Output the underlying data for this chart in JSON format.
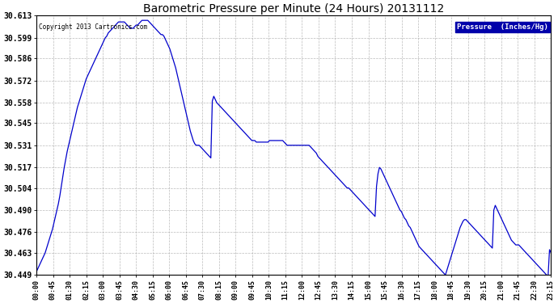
{
  "title": "Barometric Pressure per Minute (24 Hours) 20131112",
  "copyright": "Copyright 2013 Cartronics.com",
  "legend_label": "Pressure  (Inches/Hg)",
  "background_color": "#ffffff",
  "line_color": "#0000cc",
  "grid_color": "#aaaaaa",
  "yticks": [
    30.449,
    30.463,
    30.476,
    30.49,
    30.504,
    30.517,
    30.531,
    30.545,
    30.558,
    30.572,
    30.586,
    30.599,
    30.613
  ],
  "ylim": [
    30.449,
    30.613
  ],
  "xtick_labels": [
    "00:00",
    "00:45",
    "01:30",
    "02:15",
    "03:00",
    "03:45",
    "04:30",
    "05:15",
    "06:00",
    "06:45",
    "07:30",
    "08:15",
    "09:00",
    "09:45",
    "10:30",
    "11:15",
    "12:00",
    "12:45",
    "13:30",
    "14:15",
    "15:00",
    "15:45",
    "16:30",
    "17:15",
    "18:00",
    "18:45",
    "19:30",
    "20:15",
    "21:00",
    "21:45",
    "22:30",
    "23:15"
  ],
  "pressure_data": [
    30.451,
    30.453,
    30.455,
    30.457,
    30.459,
    30.461,
    30.463,
    30.466,
    30.469,
    30.472,
    30.475,
    30.478,
    30.482,
    30.486,
    30.49,
    30.494,
    30.499,
    30.505,
    30.511,
    30.517,
    30.522,
    30.527,
    30.531,
    30.535,
    30.539,
    30.543,
    30.547,
    30.551,
    30.555,
    30.558,
    30.561,
    30.564,
    30.567,
    30.57,
    30.573,
    30.575,
    30.577,
    30.579,
    30.581,
    30.583,
    30.585,
    30.587,
    30.589,
    30.591,
    30.593,
    30.595,
    30.597,
    30.599,
    30.6,
    30.602,
    30.603,
    30.604,
    30.605,
    30.606,
    30.607,
    30.608,
    30.609,
    30.609,
    30.609,
    30.609,
    30.609,
    30.608,
    30.607,
    30.606,
    30.605,
    30.605,
    30.605,
    30.606,
    30.607,
    30.607,
    30.608,
    30.609,
    30.61,
    30.61,
    30.61,
    30.61,
    30.61,
    30.609,
    30.608,
    30.607,
    30.606,
    30.605,
    30.604,
    30.603,
    30.602,
    30.601,
    30.601,
    30.6,
    30.598,
    30.596,
    30.594,
    30.592,
    30.589,
    30.586,
    30.583,
    30.58,
    30.576,
    30.572,
    30.568,
    30.564,
    30.56,
    30.556,
    30.552,
    30.548,
    30.544,
    30.54,
    30.537,
    30.534,
    30.532,
    30.531,
    30.531,
    30.531,
    30.53,
    30.529,
    30.528,
    30.527,
    30.526,
    30.525,
    30.524,
    30.523,
    30.559,
    30.562,
    30.56,
    30.558,
    30.557,
    30.556,
    30.555,
    30.554,
    30.553,
    30.552,
    30.551,
    30.55,
    30.549,
    30.548,
    30.547,
    30.546,
    30.545,
    30.544,
    30.543,
    30.542,
    30.541,
    30.54,
    30.539,
    30.538,
    30.537,
    30.536,
    30.535,
    30.534,
    30.534,
    30.534,
    30.533,
    30.533,
    30.533,
    30.533,
    30.533,
    30.533,
    30.533,
    30.533,
    30.533,
    30.534,
    30.534,
    30.534,
    30.534,
    30.534,
    30.534,
    30.534,
    30.534,
    30.534,
    30.534,
    30.533,
    30.532,
    30.531,
    30.531,
    30.531,
    30.531,
    30.531,
    30.531,
    30.531,
    30.531,
    30.531,
    30.531,
    30.531,
    30.531,
    30.531,
    30.531,
    30.531,
    30.531,
    30.53,
    30.529,
    30.528,
    30.527,
    30.526,
    30.524,
    30.523,
    30.522,
    30.521,
    30.52,
    30.519,
    30.518,
    30.517,
    30.516,
    30.515,
    30.514,
    30.513,
    30.512,
    30.511,
    30.51,
    30.509,
    30.508,
    30.507,
    30.506,
    30.505,
    30.504,
    30.504,
    30.503,
    30.502,
    30.501,
    30.5,
    30.499,
    30.498,
    30.497,
    30.496,
    30.495,
    30.494,
    30.493,
    30.492,
    30.491,
    30.49,
    30.489,
    30.488,
    30.487,
    30.486,
    30.505,
    30.513,
    30.517,
    30.516,
    30.514,
    30.512,
    30.51,
    30.508,
    30.506,
    30.504,
    30.502,
    30.5,
    30.498,
    30.496,
    30.494,
    30.492,
    30.49,
    30.489,
    30.487,
    30.485,
    30.484,
    30.482,
    30.48,
    30.479,
    30.477,
    30.475,
    30.473,
    30.471,
    30.469,
    30.467,
    30.466,
    30.465,
    30.464,
    30.463,
    30.462,
    30.461,
    30.46,
    30.459,
    30.458,
    30.457,
    30.456,
    30.455,
    30.454,
    30.453,
    30.452,
    30.451,
    30.45,
    30.449,
    30.452,
    30.455,
    30.458,
    30.461,
    30.464,
    30.467,
    30.47,
    30.473,
    30.476,
    30.479,
    30.481,
    30.483,
    30.484,
    30.484,
    30.483,
    30.482,
    30.481,
    30.48,
    30.479,
    30.478,
    30.477,
    30.476,
    30.475,
    30.474,
    30.473,
    30.472,
    30.471,
    30.47,
    30.469,
    30.468,
    30.467,
    30.466,
    30.49,
    30.493,
    30.491,
    30.489,
    30.487,
    30.485,
    30.483,
    30.481,
    30.479,
    30.477,
    30.475,
    30.473,
    30.471,
    30.47,
    30.469,
    30.468,
    30.468,
    30.468,
    30.467,
    30.466,
    30.465,
    30.464,
    30.463,
    30.462,
    30.461,
    30.46,
    30.459,
    30.458,
    30.457,
    30.456,
    30.455,
    30.454,
    30.453,
    30.452,
    30.451,
    30.45,
    30.449,
    30.448,
    30.465,
    30.463
  ]
}
